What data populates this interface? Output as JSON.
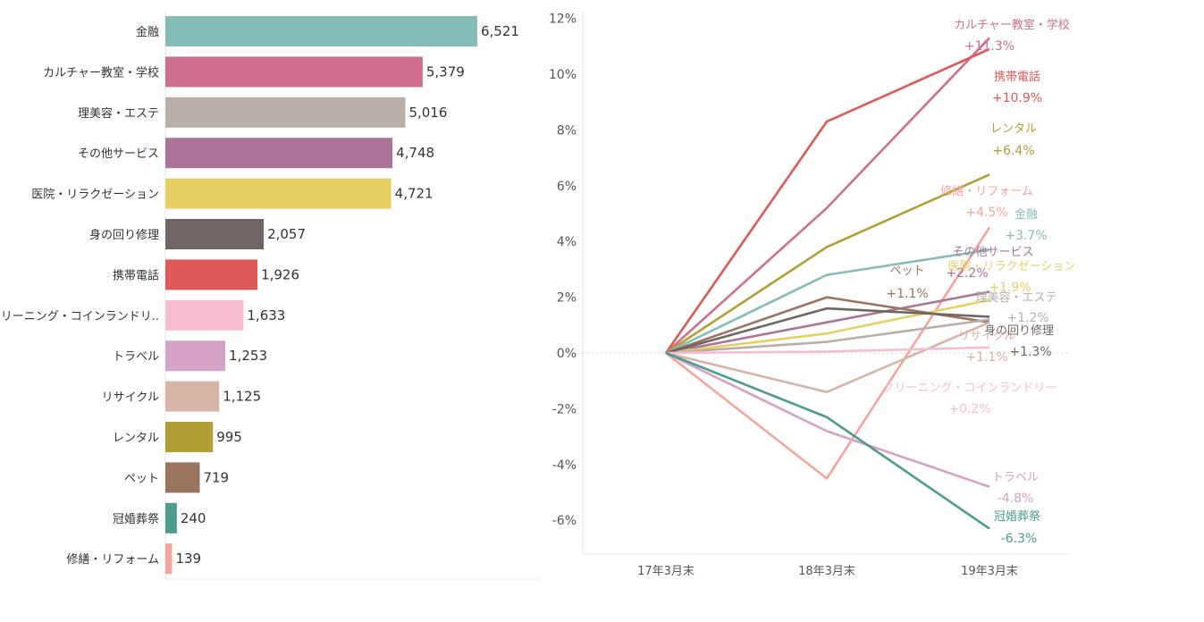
{
  "chart_data": [
    {
      "type": "bar",
      "orientation": "horizontal",
      "categories": [
        "金融",
        "カルチャー教室・学校",
        "理美容・エステ",
        "その他サービス",
        "医院・リラクゼーション",
        "身の回り修理",
        "携帯電話",
        "クリーニング・コインランドリ..",
        "トラベル",
        "リサイクル",
        "レンタル",
        "ペット",
        "冠婚葬祭",
        "修繕・リフォーム"
      ],
      "values": [
        6521,
        5379,
        5016,
        4748,
        4721,
        2057,
        1926,
        1633,
        1253,
        1125,
        995,
        719,
        240,
        139
      ],
      "value_labels": [
        "6,521",
        "5,379",
        "5,016",
        "4,748",
        "4,721",
        "2,057",
        "1,926",
        "1,633",
        "1,253",
        "1,125",
        "995",
        "719",
        "240",
        "139"
      ],
      "colors": [
        "#85bdb6",
        "#cf6f90",
        "#b7afa8",
        "#ab7499",
        "#e8cf63",
        "#6e6663",
        "#dd5a58",
        "#f7bcd1",
        "#d4a3c6",
        "#d6b4a6",
        "#b19f36",
        "#9b7460",
        "#4b9b8e",
        "#f4a59b"
      ],
      "xlim": [
        0,
        7000
      ]
    },
    {
      "type": "line",
      "x": [
        "17年3月末",
        "18年3月末",
        "19年3月末"
      ],
      "ylim": [
        -7,
        12
      ],
      "yticks": [
        -6,
        -4,
        -2,
        0,
        2,
        4,
        6,
        8,
        10,
        12
      ],
      "ytick_labels": [
        "-6%",
        "-4%",
        "-2%",
        "0%",
        "2%",
        "4%",
        "6%",
        "8%",
        "10%",
        "12%"
      ],
      "series": [
        {
          "name": "カルチャー教室・学校",
          "values": [
            0,
            5.2,
            11.3
          ],
          "end_label": "+11.3%",
          "color": "#cf6f90"
        },
        {
          "name": "携帯電話",
          "values": [
            0,
            8.3,
            10.9
          ],
          "end_label": "+10.9%",
          "color": "#dd5a58"
        },
        {
          "name": "レンタル",
          "values": [
            0,
            3.8,
            6.4
          ],
          "end_label": "+6.4%",
          "color": "#b19f36"
        },
        {
          "name": "修繕・リフォーム",
          "values": [
            0,
            -4.5,
            4.5
          ],
          "end_label": "+4.5%",
          "color": "#f4a59b"
        },
        {
          "name": "金融",
          "values": [
            0,
            2.8,
            3.7
          ],
          "end_label": "+3.7%",
          "color": "#85bdb6"
        },
        {
          "name": "その他サービス",
          "values": [
            0,
            1.1,
            2.2
          ],
          "end_label": "+2.2%",
          "color": "#ab7499"
        },
        {
          "name": "医院・リラクゼーション",
          "values": [
            0,
            0.7,
            1.9
          ],
          "end_label": "+1.9%",
          "color": "#e8cf63"
        },
        {
          "name": "ペット",
          "values": [
            0,
            2.0,
            1.1
          ],
          "end_label": "+1.1%",
          "color": "#9b7460"
        },
        {
          "name": "理美容・エステ",
          "values": [
            0,
            0.4,
            1.2
          ],
          "end_label": "+1.2%",
          "color": "#b7afa8"
        },
        {
          "name": "身の回り修理",
          "values": [
            0,
            1.6,
            1.3
          ],
          "end_label": "+1.3%",
          "color": "#6e6663"
        },
        {
          "name": "リサイクル",
          "values": [
            0,
            -1.4,
            1.1
          ],
          "end_label": "+1.1%",
          "color": "#d6b4a6"
        },
        {
          "name": "クリーニング・コインランドリー",
          "values": [
            0,
            0.05,
            0.2
          ],
          "end_label": "+0.2%",
          "color": "#f7bcd1"
        },
        {
          "name": "トラベル",
          "values": [
            0,
            -2.8,
            -4.8
          ],
          "end_label": "-4.8%",
          "color": "#d4a3c6"
        },
        {
          "name": "冠婚葬祭",
          "values": [
            0,
            -2.3,
            -6.3
          ],
          "end_label": "-6.3%",
          "color": "#4b9b8e"
        }
      ]
    }
  ]
}
